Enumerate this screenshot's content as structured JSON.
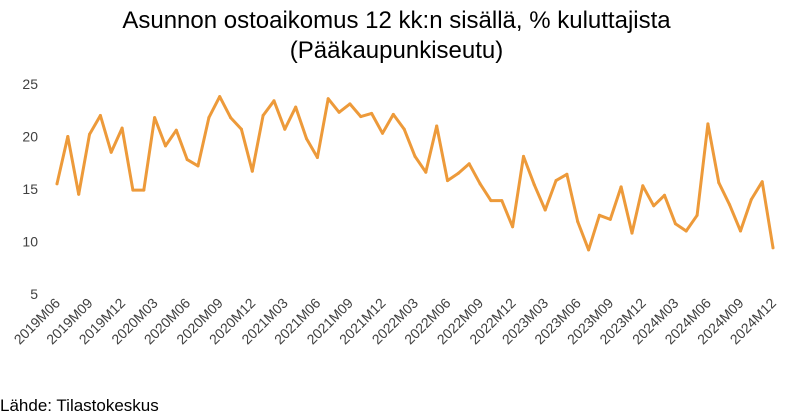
{
  "chart_data": {
    "type": "line",
    "title_lines": [
      "Asunnon ostoaikomus 12 kk:n sisällä, % kuluttajista",
      "(Pääkaupunkiseutu)"
    ],
    "xlabel": "",
    "ylabel": "",
    "ylim": [
      5,
      25
    ],
    "yticks": [
      "5",
      "10",
      "15",
      "20",
      "25"
    ],
    "grid": false,
    "legend": "none",
    "line_color": "#ED9A3A",
    "x": [
      "2019M06",
      "2019M07",
      "2019M08",
      "2019M09",
      "2019M10",
      "2019M11",
      "2019M12",
      "2020M01",
      "2020M02",
      "2020M03",
      "2020M04",
      "2020M05",
      "2020M06",
      "2020M07",
      "2020M08",
      "2020M09",
      "2020M10",
      "2020M11",
      "2020M12",
      "2021M01",
      "2021M02",
      "2021M03",
      "2021M04",
      "2021M05",
      "2021M06",
      "2021M07",
      "2021M08",
      "2021M09",
      "2021M10",
      "2021M11",
      "2021M12",
      "2022M01",
      "2022M02",
      "2022M03",
      "2022M04",
      "2022M05",
      "2022M06",
      "2022M07",
      "2022M08",
      "2022M09",
      "2022M10",
      "2022M11",
      "2022M12",
      "2023M01",
      "2023M02",
      "2023M03",
      "2023M04",
      "2023M05",
      "2023M06",
      "2023M07",
      "2023M08",
      "2023M09",
      "2023M10",
      "2023M11",
      "2023M12",
      "2024M01",
      "2024M02",
      "2024M03",
      "2024M04",
      "2024M05",
      "2024M06",
      "2024M07",
      "2024M08",
      "2024M09",
      "2024M10",
      "2024M11",
      "2024M12"
    ],
    "xtick_labels": [
      "2019M06",
      "2019M09",
      "2019M12",
      "2020M03",
      "2020M06",
      "2020M09",
      "2020M12",
      "2021M03",
      "2021M06",
      "2021M09",
      "2021M12",
      "2022M03",
      "2022M06",
      "2022M09",
      "2022M12",
      "2023M03",
      "2023M06",
      "2023M09",
      "2023M12",
      "2024M03",
      "2024M06",
      "2024M09",
      "2024M12"
    ],
    "series": [
      {
        "values": [
          15.5,
          20.0,
          14.5,
          20.2,
          22.0,
          18.5,
          20.8,
          14.9,
          14.9,
          21.8,
          19.1,
          20.6,
          17.8,
          17.2,
          21.8,
          23.8,
          21.8,
          20.7,
          16.7,
          22.0,
          23.4,
          20.7,
          22.8,
          19.8,
          18.0,
          23.6,
          22.3,
          23.1,
          21.9,
          22.2,
          20.3,
          22.1,
          20.7,
          18.1,
          16.6,
          21.0,
          15.8,
          16.5,
          17.4,
          15.5,
          13.9,
          13.9,
          11.4,
          18.1,
          15.4,
          13.0,
          15.8,
          16.4,
          11.9,
          9.2,
          12.5,
          12.1,
          15.2,
          10.8,
          15.3,
          13.4,
          14.4,
          11.7,
          11.0,
          12.5,
          21.2,
          15.6,
          13.5,
          11.0,
          14.0,
          15.7,
          9.4
        ]
      }
    ]
  },
  "source": "Lähde: Tilastokeskus"
}
